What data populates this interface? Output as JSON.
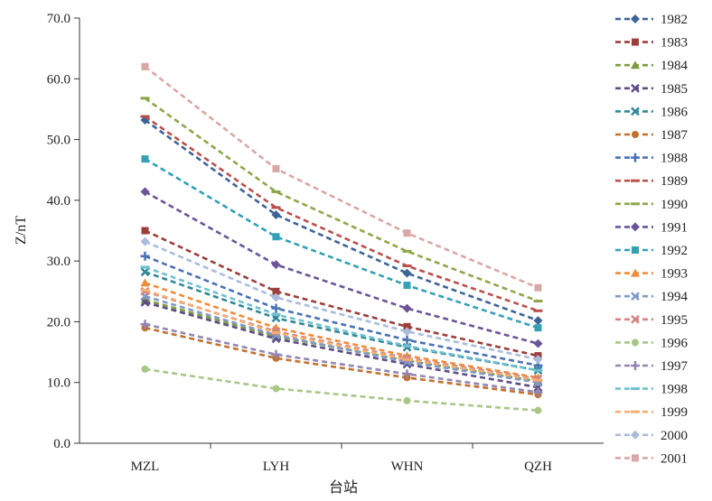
{
  "chart_data": {
    "type": "line",
    "title": "",
    "xlabel": "台站",
    "ylabel": "Z/nT",
    "categories": [
      "MZL",
      "LYH",
      "WHN",
      "QZH"
    ],
    "ylim": [
      0,
      70
    ],
    "yticks": [
      "0.0",
      "10.0",
      "20.0",
      "30.0",
      "40.0",
      "50.0",
      "60.0",
      "70.0"
    ],
    "grid": false,
    "legend_position": "right",
    "line_style": "dashed",
    "series": [
      {
        "name": "1982",
        "color": "#3e6396",
        "marker": "diamond",
        "values": [
          53.2,
          37.6,
          28.0,
          20.2
        ]
      },
      {
        "name": "1983",
        "color": "#9c3f3c",
        "marker": "square",
        "values": [
          35.0,
          25.0,
          19.2,
          14.4
        ]
      },
      {
        "name": "1984",
        "color": "#7d9c40",
        "marker": "triangle",
        "values": [
          23.6,
          17.6,
          13.6,
          10.2
        ]
      },
      {
        "name": "1985",
        "color": "#5e4d86",
        "marker": "x",
        "values": [
          23.2,
          17.2,
          13.0,
          9.2
        ]
      },
      {
        "name": "1986",
        "color": "#2f8896",
        "marker": "x",
        "values": [
          28.2,
          20.6,
          15.8,
          12.0
        ]
      },
      {
        "name": "1987",
        "color": "#c0712f",
        "marker": "circle",
        "values": [
          19.0,
          14.0,
          10.8,
          8.0
        ]
      },
      {
        "name": "1988",
        "color": "#4a72b4",
        "marker": "plus",
        "values": [
          30.8,
          22.2,
          17.0,
          12.8
        ]
      },
      {
        "name": "1989",
        "color": "#b9504c",
        "marker": "dash",
        "values": [
          53.8,
          38.8,
          29.2,
          21.8
        ]
      },
      {
        "name": "1990",
        "color": "#8ea64a",
        "marker": "dash",
        "values": [
          56.8,
          41.4,
          31.6,
          23.4
        ]
      },
      {
        "name": "1991",
        "color": "#6b5597",
        "marker": "diamond",
        "values": [
          41.4,
          29.4,
          22.2,
          16.4
        ]
      },
      {
        "name": "1992",
        "color": "#33a0b4",
        "marker": "square",
        "values": [
          46.8,
          34.0,
          26.0,
          19.0
        ]
      },
      {
        "name": "1993",
        "color": "#ef8d3a",
        "marker": "triangle",
        "values": [
          26.4,
          19.0,
          14.4,
          10.8
        ]
      },
      {
        "name": "1994",
        "color": "#7f9bc9",
        "marker": "x",
        "values": [
          24.2,
          17.8,
          13.4,
          10.0
        ]
      },
      {
        "name": "1995",
        "color": "#d08480",
        "marker": "x",
        "values": [
          25.0,
          18.4,
          14.0,
          10.6
        ]
      },
      {
        "name": "1996",
        "color": "#a8c686",
        "marker": "circle",
        "values": [
          12.2,
          9.0,
          7.0,
          5.4
        ]
      },
      {
        "name": "1997",
        "color": "#9286b2",
        "marker": "plus",
        "values": [
          19.6,
          14.6,
          11.4,
          8.4
        ]
      },
      {
        "name": "1998",
        "color": "#6fc0d1",
        "marker": "dash",
        "values": [
          29.0,
          21.2,
          16.0,
          12.0
        ]
      },
      {
        "name": "1999",
        "color": "#f5ae72",
        "marker": "dash",
        "values": [
          25.2,
          18.2,
          13.8,
          10.4
        ]
      },
      {
        "name": "2000",
        "color": "#a9bcdc",
        "marker": "diamond",
        "values": [
          33.2,
          24.0,
          18.4,
          13.8
        ]
      },
      {
        "name": "2001",
        "color": "#d8a8a6",
        "marker": "square",
        "values": [
          62.0,
          45.2,
          34.6,
          25.6
        ]
      }
    ]
  }
}
